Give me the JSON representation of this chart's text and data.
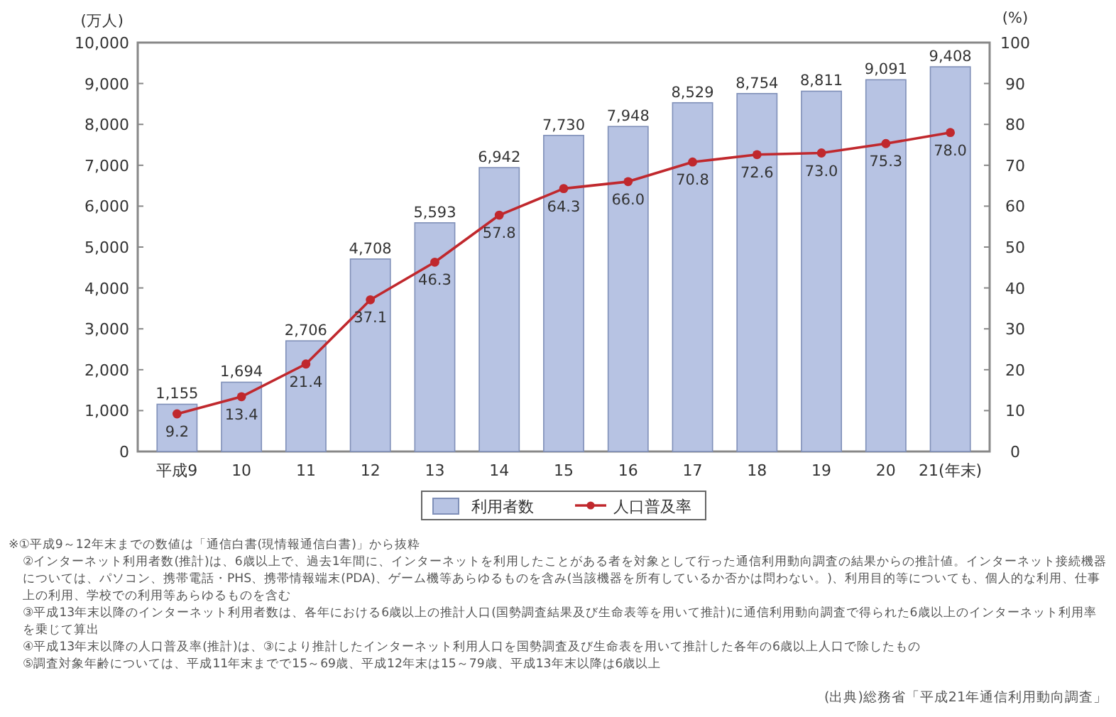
{
  "chart_data": {
    "type": "bar",
    "ylabel": "(万人)",
    "y2label": "(%)",
    "categories": [
      "平成9",
      "10",
      "11",
      "12",
      "13",
      "14",
      "15",
      "16",
      "17",
      "18",
      "19",
      "20",
      "21(年末)"
    ],
    "series": [
      {
        "name": "利用者数",
        "color": "#b7c3e3",
        "values": [
          1155,
          1694,
          2706,
          4708,
          5593,
          6942,
          7730,
          7948,
          8529,
          8754,
          8811,
          9091,
          9408
        ],
        "value_labels": [
          "1,155",
          "1,694",
          "2,706",
          "4,708",
          "5,593",
          "6,942",
          "7,730",
          "7,948",
          "8,529",
          "8,754",
          "8,811",
          "9,091",
          "9,408"
        ]
      },
      {
        "name": "人口普及率",
        "type": "line",
        "axis": "y2",
        "color": "#c0282d",
        "marker": "circle",
        "values": [
          9.2,
          13.4,
          21.4,
          37.1,
          46.3,
          57.8,
          64.3,
          66.0,
          70.8,
          72.6,
          73.0,
          75.3,
          78.0
        ],
        "value_labels": [
          "9.2",
          "13.4",
          "21.4",
          "37.1",
          "46.3",
          "57.8",
          "64.3",
          "66.0",
          "70.8",
          "72.6",
          "73.0",
          "75.3",
          "78.0"
        ]
      }
    ],
    "ylim": [
      0,
      10000
    ],
    "yticks": [
      {
        "value": 0,
        "label": "0"
      },
      {
        "value": 1000,
        "label": "1,000"
      },
      {
        "value": 2000,
        "label": "2,000"
      },
      {
        "value": 3000,
        "label": "3,000"
      },
      {
        "value": 4000,
        "label": "4,000"
      },
      {
        "value": 5000,
        "label": "5,000"
      },
      {
        "value": 6000,
        "label": "6,000"
      },
      {
        "value": 7000,
        "label": "7,000"
      },
      {
        "value": 8000,
        "label": "8,000"
      },
      {
        "value": 9000,
        "label": "9,000"
      },
      {
        "value": 10000,
        "label": "10,000"
      }
    ],
    "y2lim": [
      0,
      100
    ],
    "y2ticks": [
      0,
      10,
      20,
      30,
      40,
      50,
      60,
      70,
      80,
      90,
      100
    ],
    "grid": false,
    "legend": "bottom",
    "annotations": [
      "※①平成9～12年末までの数値は「通信白書(現情報通信白書)」から抜粋",
      "②インターネット利用者数(推計)は、6歳以上で、過去1年間に、インターネットを利用したことがある者を対象として行った通信利用動向調査の結果からの推計値。インターネット接続機器については、パソコン、携帯電話・PHS、携帯情報端末(PDA)、ゲーム機等あらゆるものを含み(当該機器を所有しているか否かは問わない。)、利用目的等についても、個人的な利用、仕事上の利用、学校での利用等あらゆるものを含む",
      "③平成13年末以降のインターネット利用者数は、各年における6歳以上の推計人口(国勢調査結果及び生命表等を用いて推計)に通信利用動向調査で得られた6歳以上のインターネット利用率を乗じて算出",
      "④平成13年末以降の人口普及率(推計)は、③により推計したインターネット利用人口を国勢調査及び生命表を用いて推計した各年の6歳以上人口で除したもの",
      "⑤調査対象年齢については、平成11年末までで15～69歳、平成12年末は15～79歳、平成13年末以降は6歳以上",
      "(出典)総務省「平成21年通信利用動向調査」"
    ]
  }
}
